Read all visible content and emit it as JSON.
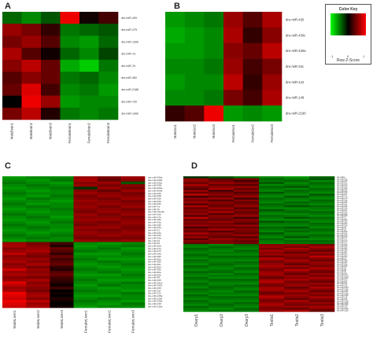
{
  "panels": [
    {
      "letter": "A"
    },
    {
      "letter": "B"
    },
    {
      "letter": "C"
    },
    {
      "letter": "D"
    }
  ],
  "legend": {
    "title": "Color Key",
    "xlabel": "Row Z-Score",
    "ticks": [
      "-1",
      "0",
      "1"
    ]
  },
  "chart_data": [
    {
      "type": "heatmap",
      "panel": "A",
      "columns": [
        "MaleBrain1",
        "MaleBrain2",
        "MaleBrain3",
        "FemaleBrain1",
        "FemaleBrain2",
        "FemaleBrain3"
      ],
      "rows": [
        "dre-miR-499",
        "dre-miR-375",
        "dre-miR-130b",
        "dre-miR-7a",
        "dre-miR-7b",
        "dre-miR-460",
        "dre-miR-2188",
        "dre-miR-730",
        "dre-miR-190b"
      ],
      "values": [
        [
          -0.6,
          -0.8,
          -0.5,
          1.4,
          0.1,
          0.4
        ],
        [
          0.9,
          0.7,
          0.3,
          -0.7,
          -0.6,
          -0.5
        ],
        [
          0.7,
          0.9,
          0.5,
          -0.8,
          -0.9,
          -0.6
        ],
        [
          1.0,
          0.5,
          0.1,
          -0.6,
          -0.8,
          -0.4
        ],
        [
          0.8,
          1.1,
          0.6,
          -1.0,
          -1.2,
          -0.7
        ],
        [
          0.5,
          0.8,
          0.6,
          -0.7,
          -0.6,
          -0.8
        ],
        [
          0.6,
          1.3,
          0.4,
          -0.8,
          -0.7,
          -0.9
        ],
        [
          0.0,
          1.4,
          0.9,
          -0.9,
          -0.8,
          -0.8
        ],
        [
          0.7,
          1.1,
          0.2,
          -0.7,
          -0.8,
          -0.7
        ]
      ]
    },
    {
      "type": "heatmap",
      "panel": "B",
      "columns": [
        "MaleGut1",
        "MaleGut2",
        "MaleGut3",
        "FemaleGut1",
        "FemaleGut2",
        "FemaleGut3"
      ],
      "rows": [
        "dre-miR-430",
        "dre-miR-430c",
        "dre-miR-430a",
        "dre-miR-34c",
        "dre-miR-122",
        "dre-miR-148",
        "dre-miR-2190"
      ],
      "values": [
        [
          -0.9,
          -0.8,
          -0.7,
          0.9,
          0.5,
          1.0
        ],
        [
          -1.0,
          -0.9,
          -0.8,
          1.0,
          0.3,
          0.8
        ],
        [
          -0.9,
          -0.9,
          -0.8,
          0.8,
          0.6,
          1.1
        ],
        [
          -0.8,
          -0.8,
          -0.7,
          0.9,
          0.4,
          0.7
        ],
        [
          -0.9,
          -0.8,
          -0.8,
          1.1,
          0.3,
          0.9
        ],
        [
          -0.8,
          -0.8,
          -0.7,
          0.7,
          0.4,
          1.0
        ],
        [
          0.3,
          0.5,
          1.4,
          -0.9,
          -0.8,
          -0.9
        ]
      ]
    },
    {
      "type": "heatmap",
      "panel": "C",
      "columns": [
        "MaleLiver1",
        "MaleLiver2",
        "MaleLiver3",
        "FemaleLiver1",
        "FemaleLiver2",
        "FemaleLiver3"
      ],
      "rows": [
        "dre-miR-430a",
        "dre-miR-430b",
        "dre-miR-430c",
        "dre-miR-430i",
        "dre-miR-454a",
        "dre-miR-454b",
        "dre-miR-455",
        "dre-miR-458",
        "dre-miR-459",
        "dre-miR-460",
        "dre-miR-462",
        "dre-miR-7a",
        "dre-miR-7b",
        "dre-miR-15a-5p",
        "dre-miR-16b",
        "dre-miR-17a",
        "dre-miR-18a",
        "dre-miR-19a",
        "dre-miR-19b",
        "dre-miR-20a",
        "dre-miR-21",
        "dre-miR-22a",
        "dre-miR-22b",
        "dre-miR-23a",
        "dre-miR-24",
        "dre-miR-25",
        "dre-miR-26a",
        "dre-miR-27a",
        "dre-miR-27b",
        "dre-miR-29a",
        "dre-miR-29b",
        "dre-miR-30a",
        "dre-miR-30b",
        "dre-miR-30c",
        "dre-miR-30d",
        "dre-miR-30e",
        "dre-miR-92a",
        "dre-miR-92b",
        "dre-miR-99",
        "dre-miR-100",
        "dre-miR-101a",
        "dre-miR-101b",
        "dre-miR-103",
        "dre-miR-107",
        "dre-miR-122",
        "dre-miR-125a",
        "dre-miR-125b",
        "dre-miR-126a",
        "dre-miR-128",
        "dre-miR-130a"
      ],
      "values": [
        [
          -0.9,
          -0.8,
          -0.8,
          0.9,
          0.7,
          0.9
        ],
        [
          -0.8,
          -0.9,
          -0.7,
          1.0,
          0.6,
          0.8
        ],
        [
          -0.7,
          -0.8,
          -0.9,
          0.8,
          0.9,
          -0.5
        ],
        [
          -0.8,
          -0.7,
          -0.8,
          0.9,
          0.7,
          0.8
        ],
        [
          -0.9,
          -0.8,
          -0.7,
          -0.3,
          0.9,
          0.7
        ],
        [
          -0.8,
          -0.9,
          -0.8,
          0.8,
          0.6,
          0.9
        ],
        [
          -0.7,
          -0.8,
          -0.8,
          0.9,
          0.8,
          0.7
        ],
        [
          -0.8,
          -0.9,
          -0.7,
          0.7,
          0.9,
          0.8
        ],
        [
          -0.9,
          -0.7,
          -0.8,
          0.8,
          0.7,
          0.9
        ],
        [
          -0.8,
          -0.8,
          -0.9,
          0.9,
          0.8,
          0.7
        ],
        [
          -0.7,
          -0.9,
          -0.8,
          0.8,
          0.9,
          0.8
        ],
        [
          -0.8,
          -0.7,
          -0.8,
          0.9,
          0.7,
          0.9
        ],
        [
          -0.9,
          -0.8,
          -0.7,
          0.8,
          0.8,
          0.7
        ],
        [
          -0.8,
          -0.9,
          -0.8,
          0.7,
          0.9,
          0.8
        ],
        [
          -0.7,
          -0.8,
          -0.8,
          0.9,
          0.7,
          0.9
        ],
        [
          -0.8,
          -0.7,
          -0.9,
          0.8,
          0.8,
          0.7
        ],
        [
          -0.9,
          -0.8,
          -0.8,
          0.9,
          0.9,
          0.8
        ],
        [
          -0.8,
          -0.9,
          -0.7,
          0.8,
          0.7,
          0.9
        ],
        [
          -0.7,
          -0.8,
          -0.8,
          0.7,
          0.8,
          0.8
        ],
        [
          -0.8,
          -0.7,
          -0.8,
          0.9,
          0.9,
          0.7
        ],
        [
          -0.9,
          -0.8,
          -0.9,
          0.8,
          0.7,
          0.8
        ],
        [
          -0.8,
          -0.9,
          -0.8,
          0.9,
          0.8,
          0.9
        ],
        [
          -0.7,
          -0.8,
          -0.7,
          0.8,
          0.9,
          0.8
        ],
        [
          -0.8,
          -0.7,
          -0.8,
          0.7,
          0.7,
          0.7
        ],
        [
          -0.9,
          -0.8,
          -0.8,
          0.9,
          0.8,
          0.9
        ],
        [
          0.9,
          0.7,
          0.4,
          -0.8,
          -0.9,
          -0.8
        ],
        [
          1.0,
          0.8,
          0.2,
          -0.9,
          -0.8,
          -0.7
        ],
        [
          0.8,
          0.9,
          0.6,
          -0.8,
          -0.7,
          -0.9
        ],
        [
          0.9,
          1.0,
          0.5,
          -0.7,
          -0.8,
          -0.8
        ],
        [
          1.1,
          0.8,
          0.3,
          -0.9,
          -0.9,
          -0.7
        ],
        [
          0.8,
          0.7,
          0.6,
          -0.8,
          -0.8,
          -0.8
        ],
        [
          0.9,
          0.9,
          0.4,
          -0.7,
          -0.9,
          -0.9
        ],
        [
          1.0,
          0.8,
          0.5,
          -0.8,
          -0.7,
          -0.8
        ],
        [
          0.8,
          1.0,
          0.6,
          -0.9,
          -0.8,
          -0.7
        ],
        [
          0.9,
          0.7,
          0.3,
          -0.8,
          -0.9,
          -0.8
        ],
        [
          1.2,
          0.9,
          0.2,
          -0.7,
          -0.8,
          -0.9
        ],
        [
          0.9,
          0.8,
          0.5,
          -0.8,
          -0.7,
          -0.8
        ],
        [
          1.0,
          0.9,
          0.6,
          -0.9,
          -0.9,
          -0.7
        ],
        [
          0.8,
          0.7,
          0.4,
          -0.8,
          -0.8,
          -0.8
        ],
        [
          0.9,
          1.0,
          0.3,
          -0.7,
          -0.9,
          -0.9
        ],
        [
          1.3,
          0.8,
          0.2,
          -0.8,
          -0.8,
          -0.7
        ],
        [
          1.1,
          0.9,
          0.1,
          -0.9,
          -0.7,
          -0.8
        ],
        [
          0.9,
          0.8,
          0.4,
          -0.8,
          -0.9,
          -0.8
        ],
        [
          1.0,
          0.7,
          0.0,
          -0.7,
          -0.8,
          -0.9
        ],
        [
          1.4,
          0.9,
          0.1,
          -0.8,
          -0.8,
          -0.7
        ],
        [
          1.3,
          1.0,
          0.0,
          -0.9,
          -0.9,
          -0.8
        ],
        [
          1.2,
          0.8,
          0.2,
          -0.8,
          -0.7,
          -0.8
        ],
        [
          1.4,
          1.1,
          0.1,
          -0.7,
          -0.8,
          -0.9
        ],
        [
          1.3,
          0.9,
          0.0,
          -0.8,
          -0.9,
          -0.7
        ],
        [
          1.2,
          1.0,
          0.1,
          -0.9,
          -0.8,
          -0.8
        ]
      ]
    },
    {
      "type": "heatmap",
      "panel": "D",
      "columns": [
        "Ovary1",
        "Ovary2",
        "Ovary3",
        "Testis1",
        "Testis2",
        "Testis3"
      ],
      "rows": [
        "dre-miR-1",
        "dre-miR-10a",
        "dre-miR-10b",
        "dre-miR-10c",
        "dre-miR-10d",
        "dre-miR-15a",
        "dre-miR-15b",
        "dre-miR-16a",
        "dre-miR-16b",
        "dre-miR-16c",
        "dre-miR-17a",
        "dre-miR-17b",
        "dre-miR-18a",
        "dre-miR-18b",
        "dre-miR-18c",
        "dre-miR-19a",
        "dre-miR-19b",
        "dre-miR-19c",
        "dre-miR-19d",
        "dre-miR-20a",
        "dre-miR-20b",
        "dre-miR-21",
        "dre-miR-22a",
        "dre-miR-22b",
        "dre-miR-23a",
        "dre-miR-23b",
        "dre-miR-24",
        "dre-miR-25",
        "dre-miR-26a",
        "dre-miR-26b",
        "dre-miR-27a",
        "dre-miR-27b",
        "dre-miR-27c",
        "dre-miR-27d",
        "dre-miR-27e",
        "dre-miR-29a",
        "dre-miR-29b",
        "dre-miR-30a",
        "dre-miR-30b",
        "dre-miR-30c",
        "dre-miR-30d",
        "dre-miR-30e",
        "dre-miR-31",
        "dre-miR-34a",
        "dre-miR-34b",
        "dre-miR-92a",
        "dre-miR-92b",
        "dre-miR-93",
        "dre-miR-96",
        "dre-miR-99",
        "dre-miR-100",
        "dre-miR-101a",
        "dre-miR-101b",
        "dre-miR-103",
        "dre-miR-107",
        "dre-miR-122",
        "dre-miR-124",
        "dre-miR-125a",
        "dre-miR-125b",
        "dre-miR-125c",
        "dre-miR-126a",
        "dre-miR-126b",
        "dre-miR-128",
        "dre-miR-129",
        "dre-miR-130a",
        "dre-miR-130b",
        "dre-miR-130c",
        "dre-miR-132",
        "dre-miR-133a",
        "dre-miR-133b"
      ],
      "values": [
        [
          -0.3,
          -0.5,
          -0.7,
          -0.8,
          -0.9,
          -0.6
        ],
        [
          0.8,
          0.5,
          0.7,
          -0.6,
          -0.7,
          -0.5
        ],
        [
          0.9,
          0.7,
          0.4,
          -0.7,
          -0.6,
          -0.8
        ],
        [
          0.6,
          0.9,
          0.8,
          -0.5,
          -0.8,
          -0.6
        ],
        [
          1.0,
          0.6,
          0.5,
          -0.8,
          -0.7,
          -0.7
        ],
        [
          0.7,
          0.8,
          0.9,
          -0.6,
          -0.5,
          -0.8
        ],
        [
          0.5,
          1.0,
          0.6,
          -0.7,
          -0.8,
          -0.6
        ],
        [
          0.9,
          0.4,
          0.8,
          -0.8,
          -0.6,
          -0.7
        ],
        [
          0.6,
          0.7,
          0.5,
          -0.5,
          -0.7,
          -0.8
        ],
        [
          1.1,
          0.8,
          0.7,
          -0.7,
          -0.8,
          -0.5
        ],
        [
          0.4,
          0.6,
          0.9,
          -0.8,
          -0.5,
          -0.7
        ],
        [
          0.8,
          0.9,
          0.4,
          -0.6,
          -0.7,
          -0.8
        ],
        [
          0.7,
          0.5,
          0.8,
          -0.7,
          -0.8,
          -0.6
        ],
        [
          0.9,
          0.8,
          0.6,
          -0.8,
          -0.6,
          -0.7
        ],
        [
          0.5,
          0.7,
          0.7,
          -0.6,
          -0.7,
          -0.8
        ],
        [
          1.0,
          0.6,
          0.9,
          -0.7,
          -0.5,
          -0.6
        ],
        [
          0.6,
          0.9,
          0.5,
          -0.8,
          -0.8,
          -0.7
        ],
        [
          0.8,
          0.7,
          0.8,
          -0.5,
          -0.7,
          -0.8
        ],
        [
          0.7,
          1.0,
          0.6,
          -0.7,
          -0.6,
          -0.6
        ],
        [
          0.9,
          0.5,
          0.7,
          -0.8,
          -0.8,
          -0.7
        ],
        [
          0.5,
          0.8,
          0.9,
          -0.6,
          -0.7,
          -0.8
        ],
        [
          1.1,
          0.7,
          0.4,
          -0.7,
          -0.5,
          -0.6
        ],
        [
          0.6,
          0.6,
          0.8,
          -0.8,
          -0.8,
          -0.7
        ],
        [
          0.8,
          0.9,
          0.7,
          -0.5,
          -0.6,
          -0.8
        ],
        [
          0.7,
          0.7,
          0.5,
          -0.7,
          -0.7,
          -0.6
        ],
        [
          0.9,
          0.8,
          0.9,
          -0.8,
          -0.8,
          -0.7
        ],
        [
          0.4,
          0.6,
          0.6,
          -0.6,
          -0.5,
          -0.8
        ],
        [
          0.8,
          1.0,
          0.8,
          -0.7,
          -0.7,
          -0.6
        ],
        [
          0.6,
          0.5,
          0.7,
          -0.8,
          -0.6,
          -0.7
        ],
        [
          1.0,
          0.8,
          0.6,
          -0.5,
          -0.8,
          -0.8
        ],
        [
          0.7,
          0.7,
          0.9,
          -0.7,
          -0.7,
          -0.6
        ],
        [
          0.9,
          0.6,
          0.5,
          -0.8,
          -0.5,
          -0.7
        ],
        [
          0.5,
          0.9,
          0.8,
          -0.6,
          -0.8,
          -0.8
        ],
        [
          0.8,
          0.7,
          0.6,
          -0.7,
          -0.6,
          -0.6
        ],
        [
          0.6,
          0.8,
          0.7,
          -0.8,
          -0.7,
          -0.7
        ],
        [
          -0.7,
          -0.8,
          -0.6,
          0.8,
          0.9,
          0.7
        ],
        [
          -0.8,
          -0.6,
          -0.7,
          0.9,
          0.7,
          1.0
        ],
        [
          -0.6,
          -0.7,
          -0.8,
          0.7,
          1.0,
          0.8
        ],
        [
          -0.7,
          -0.8,
          -0.6,
          1.0,
          0.8,
          0.6
        ],
        [
          -0.8,
          -0.7,
          -0.7,
          0.8,
          0.6,
          0.9
        ],
        [
          -0.6,
          -0.8,
          -0.8,
          0.9,
          0.9,
          0.7
        ],
        [
          -0.7,
          -0.6,
          -0.6,
          0.6,
          0.8,
          1.1
        ],
        [
          -0.8,
          -0.7,
          -0.7,
          1.1,
          0.7,
          0.8
        ],
        [
          -0.6,
          -0.8,
          -0.8,
          0.8,
          1.0,
          0.6
        ],
        [
          -0.7,
          -0.7,
          -0.6,
          0.7,
          0.8,
          0.9
        ],
        [
          -0.8,
          -0.6,
          -0.7,
          0.9,
          0.6,
          0.8
        ],
        [
          -0.6,
          -0.7,
          -0.8,
          1.0,
          0.9,
          0.7
        ],
        [
          -0.7,
          -0.8,
          -0.6,
          0.8,
          0.7,
          1.0
        ],
        [
          -0.8,
          -0.7,
          -0.7,
          0.7,
          1.1,
          0.8
        ],
        [
          -0.6,
          -0.6,
          -0.8,
          0.9,
          0.8,
          0.6
        ],
        [
          -0.7,
          -0.8,
          -0.6,
          1.0,
          0.6,
          0.9
        ],
        [
          -0.8,
          -0.7,
          -0.7,
          0.8,
          0.9,
          0.7
        ],
        [
          -0.6,
          -0.8,
          -0.8,
          0.6,
          0.8,
          1.0
        ],
        [
          -0.7,
          -0.6,
          -0.6,
          0.9,
          1.0,
          0.8
        ],
        [
          -0.8,
          -0.7,
          -0.7,
          1.1,
          0.7,
          0.6
        ],
        [
          -0.6,
          -0.8,
          -0.8,
          0.8,
          0.8,
          0.9
        ],
        [
          -0.7,
          -0.7,
          -0.6,
          0.7,
          0.9,
          0.7
        ],
        [
          -0.8,
          -0.6,
          -0.7,
          0.9,
          0.6,
          1.0
        ],
        [
          -0.6,
          -0.7,
          -0.8,
          1.0,
          0.8,
          0.8
        ],
        [
          -0.7,
          -0.8,
          -0.6,
          0.8,
          1.0,
          0.6
        ],
        [
          -0.8,
          -0.7,
          -0.7,
          0.6,
          0.7,
          0.9
        ],
        [
          -0.6,
          -0.8,
          -0.8,
          0.9,
          0.9,
          0.7
        ],
        [
          -0.7,
          -0.6,
          -0.6,
          1.1,
          0.8,
          1.0
        ],
        [
          -0.8,
          -0.7,
          -0.7,
          0.8,
          0.6,
          0.8
        ],
        [
          -0.6,
          -0.8,
          -0.8,
          0.7,
          1.0,
          0.6
        ],
        [
          -0.7,
          -0.7,
          -0.6,
          0.9,
          0.8,
          0.9
        ],
        [
          -0.8,
          -0.6,
          -0.7,
          1.0,
          0.7,
          0.7
        ],
        [
          -0.6,
          -0.7,
          -0.8,
          0.8,
          0.9,
          1.0
        ],
        [
          -0.7,
          -0.8,
          -0.6,
          0.7,
          0.6,
          0.8
        ],
        [
          -0.8,
          -0.7,
          -0.7,
          0.9,
          1.0,
          0.6
        ]
      ]
    }
  ]
}
